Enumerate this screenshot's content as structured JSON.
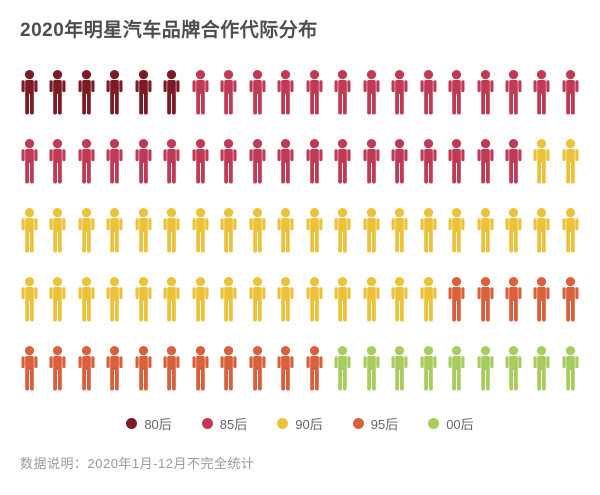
{
  "title": "2020年明星汽车品牌合作代际分布",
  "footer": {
    "note": "数据说明：2020年1月-12月不完全统计"
  },
  "chart_data": {
    "type": "pictogram",
    "title": "2020年明星汽车品牌合作代际分布",
    "rows": 5,
    "cols": 20,
    "total_units": 100,
    "categories": [
      "80后",
      "85后",
      "90后",
      "95后",
      "00后"
    ],
    "values": [
      6,
      32,
      37,
      16,
      9
    ],
    "colors": [
      "#7B1B25",
      "#C03A55",
      "#ECC23B",
      "#D9603A",
      "#A9CC5E"
    ],
    "legend_position": "bottom",
    "note": "数据说明：2020年1月-12月不完全统计"
  }
}
